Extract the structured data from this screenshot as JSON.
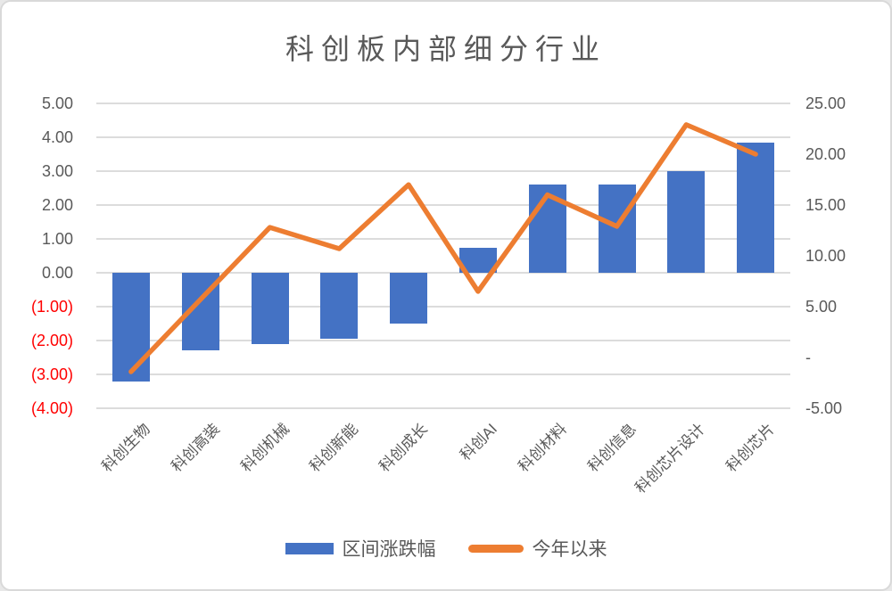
{
  "title": "科创板内部细分行业",
  "colors": {
    "bar_series": "#4472C4",
    "line_series": "#ED7D31",
    "gridline": "#DCDCDC",
    "axis_text": "#595959",
    "negative_axis_text": "#FF0000",
    "background": "#FFFFFF",
    "border": "#D9D9D9"
  },
  "chart_data": {
    "type": "combo: bar + line",
    "title": "科创板内部细分行业",
    "categories": [
      "科创生物",
      "科创高装",
      "科创机械",
      "科创新能",
      "科创成长",
      "科创AI",
      "科创材料",
      "科创信息",
      "科创芯片设计",
      "科创芯片"
    ],
    "series": [
      {
        "name": "区间涨跌幅",
        "type": "bar",
        "axis": "left",
        "color": "#4472C4",
        "values": [
          -3.2,
          -2.3,
          -2.1,
          -1.95,
          -1.5,
          0.75,
          2.6,
          2.6,
          3.0,
          3.85
        ]
      },
      {
        "name": "今年以来",
        "type": "line",
        "axis": "right",
        "color": "#ED7D31",
        "values": [
          -1.4,
          5.7,
          12.8,
          10.7,
          17.0,
          6.5,
          16.0,
          12.9,
          22.9,
          20.0
        ]
      }
    ],
    "left_axis": {
      "min": -4,
      "max": 5,
      "ticks": [
        {
          "label": "5.00",
          "value": 5,
          "negative": false
        },
        {
          "label": "4.00",
          "value": 4,
          "negative": false
        },
        {
          "label": "3.00",
          "value": 3,
          "negative": false
        },
        {
          "label": "2.00",
          "value": 2,
          "negative": false
        },
        {
          "label": "1.00",
          "value": 1,
          "negative": false
        },
        {
          "label": "0.00",
          "value": 0,
          "negative": false
        },
        {
          "label": "(1.00)",
          "value": -1,
          "negative": true
        },
        {
          "label": "(2.00)",
          "value": -2,
          "negative": true
        },
        {
          "label": "(3.00)",
          "value": -3,
          "negative": true
        },
        {
          "label": "(4.00)",
          "value": -4,
          "negative": true
        }
      ]
    },
    "right_axis": {
      "min": -5,
      "max": 25,
      "ticks": [
        {
          "label": "25.00",
          "value": 25
        },
        {
          "label": "20.00",
          "value": 20
        },
        {
          "label": "15.00",
          "value": 15
        },
        {
          "label": "10.00",
          "value": 10
        },
        {
          "label": "5.00",
          "value": 5
        },
        {
          "label": "-",
          "value": 0
        },
        {
          "label": "-5.00",
          "value": -5
        }
      ]
    },
    "grid": true,
    "legend_position": "bottom"
  },
  "legend": {
    "items": [
      {
        "label": "区间涨跌幅",
        "marker": "bar-swatch"
      },
      {
        "label": "今年以来",
        "marker": "line-swatch"
      }
    ]
  }
}
